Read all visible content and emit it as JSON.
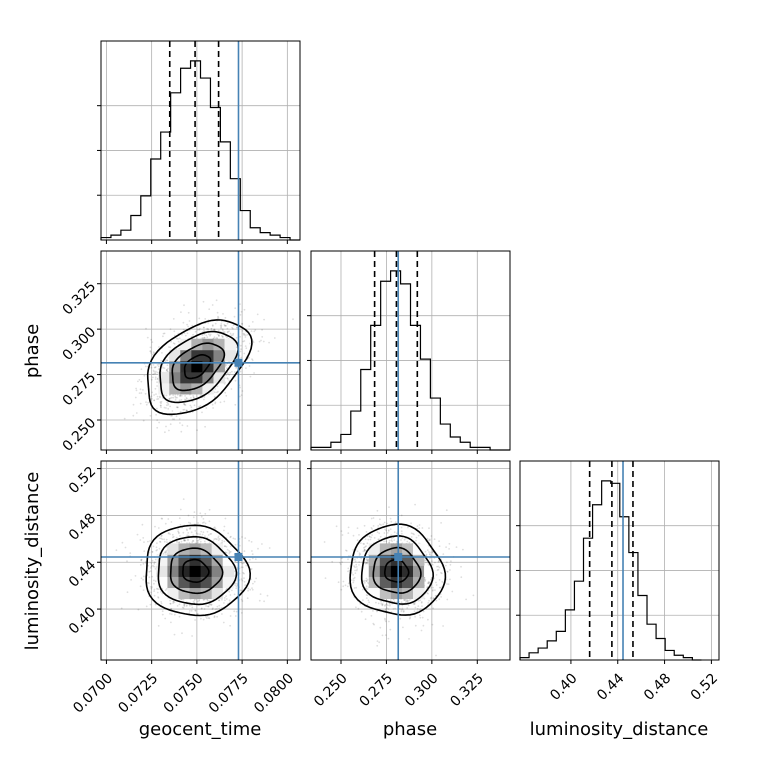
{
  "chart_data": {
    "type": "corner",
    "parameters": [
      "geocent_time",
      "phase",
      "luminosity_distance"
    ],
    "truths": [
      0.0773,
      0.2815,
      0.4445
    ],
    "quantiles": {
      "geocent_time": [
        0.0735,
        0.0749,
        0.0762
      ],
      "phase": [
        0.2685,
        0.2805,
        0.292
      ],
      "luminosity_distance": [
        0.416,
        0.435,
        0.453
      ]
    },
    "ranges": {
      "geocent_time": [
        0.0697,
        0.0807
      ],
      "phase": [
        0.2335,
        0.343
      ],
      "luminosity_distance": [
        0.3565,
        0.5265
      ]
    },
    "ticks": {
      "geocent_time": [
        "0.0700",
        "0.0725",
        "0.0750",
        "0.0775",
        "0.0800"
      ],
      "phase": [
        "0.250",
        "0.275",
        "0.300",
        "0.325"
      ],
      "luminosity_distance": [
        "0.40",
        "0.44",
        "0.48",
        "0.52"
      ]
    },
    "histograms": {
      "geocent_time": {
        "edges": [
          0.0697,
          0.07025,
          0.0708,
          0.07135,
          0.0719,
          0.07245,
          0.073,
          0.07355,
          0.0741,
          0.07465,
          0.0752,
          0.07575,
          0.0763,
          0.07685,
          0.0774,
          0.07795,
          0.0785,
          0.07905,
          0.0796,
          0.08015,
          0.0807
        ],
        "counts": [
          1,
          2,
          4,
          10,
          18,
          33,
          44,
          60,
          70,
          73,
          66,
          54,
          40,
          25,
          12,
          5,
          3,
          2,
          1,
          0
        ]
      },
      "phase": {
        "edges": [
          0.2335,
          0.23898,
          0.24445,
          0.24993,
          0.2554,
          0.26088,
          0.26635,
          0.27183,
          0.2773,
          0.28278,
          0.28825,
          0.29373,
          0.2992,
          0.30468,
          0.31015,
          0.31563,
          0.3211,
          0.32658,
          0.33205,
          0.33753,
          0.343
        ],
        "counts": [
          1,
          1,
          3,
          6,
          15,
          31,
          48,
          65,
          69,
          64,
          48,
          35,
          20,
          10,
          5,
          3,
          1,
          1,
          0,
          0
        ]
      },
      "luminosity_distance": {
        "edges": [
          0.3565,
          0.36425,
          0.372,
          0.37975,
          0.3875,
          0.39525,
          0.403,
          0.41075,
          0.4185,
          0.42625,
          0.434,
          0.44175,
          0.4495,
          0.45725,
          0.465,
          0.47275,
          0.4805,
          0.48825,
          0.496,
          0.50375,
          0.5115
        ],
        "counts": [
          1,
          3,
          5,
          8,
          12,
          21,
          33,
          51,
          65,
          75,
          74,
          60,
          45,
          27,
          15,
          9,
          4,
          2,
          1,
          0
        ]
      }
    },
    "posterior_2d": {
      "phase_vs_geocent_time": {
        "x_mean": 0.075,
        "y_mean": 0.2795,
        "x_sd": 0.0013,
        "y_sd": 0.0118,
        "corr": 0.45
      },
      "luminosity_distance_vs_geocent_time": {
        "x_mean": 0.0749,
        "y_mean": 0.4325,
        "x_sd": 0.0013,
        "y_sd": 0.0175,
        "corr": -0.05
      },
      "luminosity_distance_vs_phase": {
        "x_mean": 0.2805,
        "y_mean": 0.4325,
        "x_sd": 0.0118,
        "y_sd": 0.0175,
        "corr": -0.05
      }
    },
    "grid": true,
    "colors": {
      "truth": "#4682b4",
      "hist": "#000000",
      "quantile": "#000000",
      "contour": "#000000",
      "grid": "#b0b0b0"
    }
  }
}
